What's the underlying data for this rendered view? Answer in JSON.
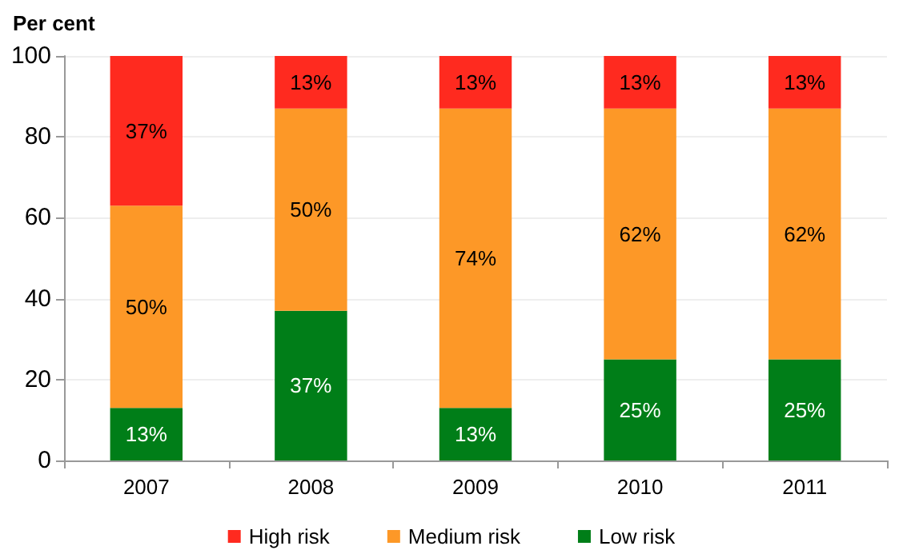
{
  "chart_data": {
    "type": "bar",
    "stacked": true,
    "ylabel": "Per cent",
    "categories": [
      "2007",
      "2008",
      "2009",
      "2010",
      "2011"
    ],
    "series": [
      {
        "name": "Low risk",
        "color": "#007e18",
        "values": [
          13,
          37,
          13,
          25,
          25
        ],
        "value_labels": [
          "13%",
          "37%",
          "13%",
          "25%",
          "25%"
        ]
      },
      {
        "name": "Medium risk",
        "color": "#fd9827",
        "values": [
          50,
          50,
          74,
          62,
          62
        ],
        "value_labels": [
          "50%",
          "50%",
          "74%",
          "62%",
          "62%"
        ]
      },
      {
        "name": "High risk",
        "color": "#ff2a1f",
        "values": [
          37,
          13,
          13,
          13,
          13
        ],
        "value_labels": [
          "37%",
          "13%",
          "13%",
          "13%",
          "13%"
        ]
      }
    ],
    "ylim": [
      0,
      100
    ],
    "yticks": [
      0,
      20,
      40,
      60,
      80,
      100
    ],
    "grid": "y",
    "legend": "bottom"
  }
}
